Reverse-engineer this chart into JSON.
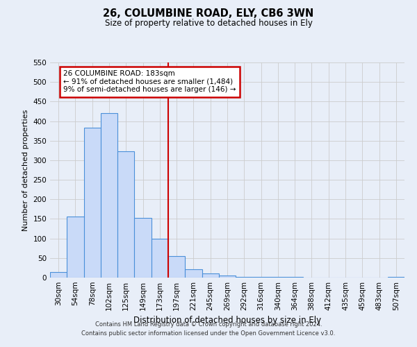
{
  "title": "26, COLUMBINE ROAD, ELY, CB6 3WN",
  "subtitle": "Size of property relative to detached houses in Ely",
  "xlabel": "Distribution of detached houses by size in Ely",
  "ylabel": "Number of detached properties",
  "bar_labels": [
    "30sqm",
    "54sqm",
    "78sqm",
    "102sqm",
    "125sqm",
    "149sqm",
    "173sqm",
    "197sqm",
    "221sqm",
    "245sqm",
    "269sqm",
    "292sqm",
    "316sqm",
    "340sqm",
    "364sqm",
    "388sqm",
    "412sqm",
    "435sqm",
    "459sqm",
    "483sqm",
    "507sqm"
  ],
  "bar_values": [
    15,
    157,
    383,
    420,
    323,
    153,
    100,
    55,
    22,
    10,
    5,
    2,
    2,
    1,
    1,
    0,
    0,
    0,
    0,
    0,
    2
  ],
  "bar_color": "#c9daf8",
  "bar_edge_color": "#4a90d9",
  "vline_x": 6.5,
  "vline_color": "#cc0000",
  "annotation_title": "26 COLUMBINE ROAD: 183sqm",
  "annotation_line1": "← 91% of detached houses are smaller (1,484)",
  "annotation_line2": "9% of semi-detached houses are larger (146) →",
  "annotation_box_color": "#ffffff",
  "annotation_border_color": "#cc0000",
  "ylim": [
    0,
    550
  ],
  "yticks": [
    0,
    50,
    100,
    150,
    200,
    250,
    300,
    350,
    400,
    450,
    500,
    550
  ],
  "footer_line1": "Contains HM Land Registry data © Crown copyright and database right 2024.",
  "footer_line2": "Contains public sector information licensed under the Open Government Licence v3.0.",
  "bg_color": "#e8eef8"
}
